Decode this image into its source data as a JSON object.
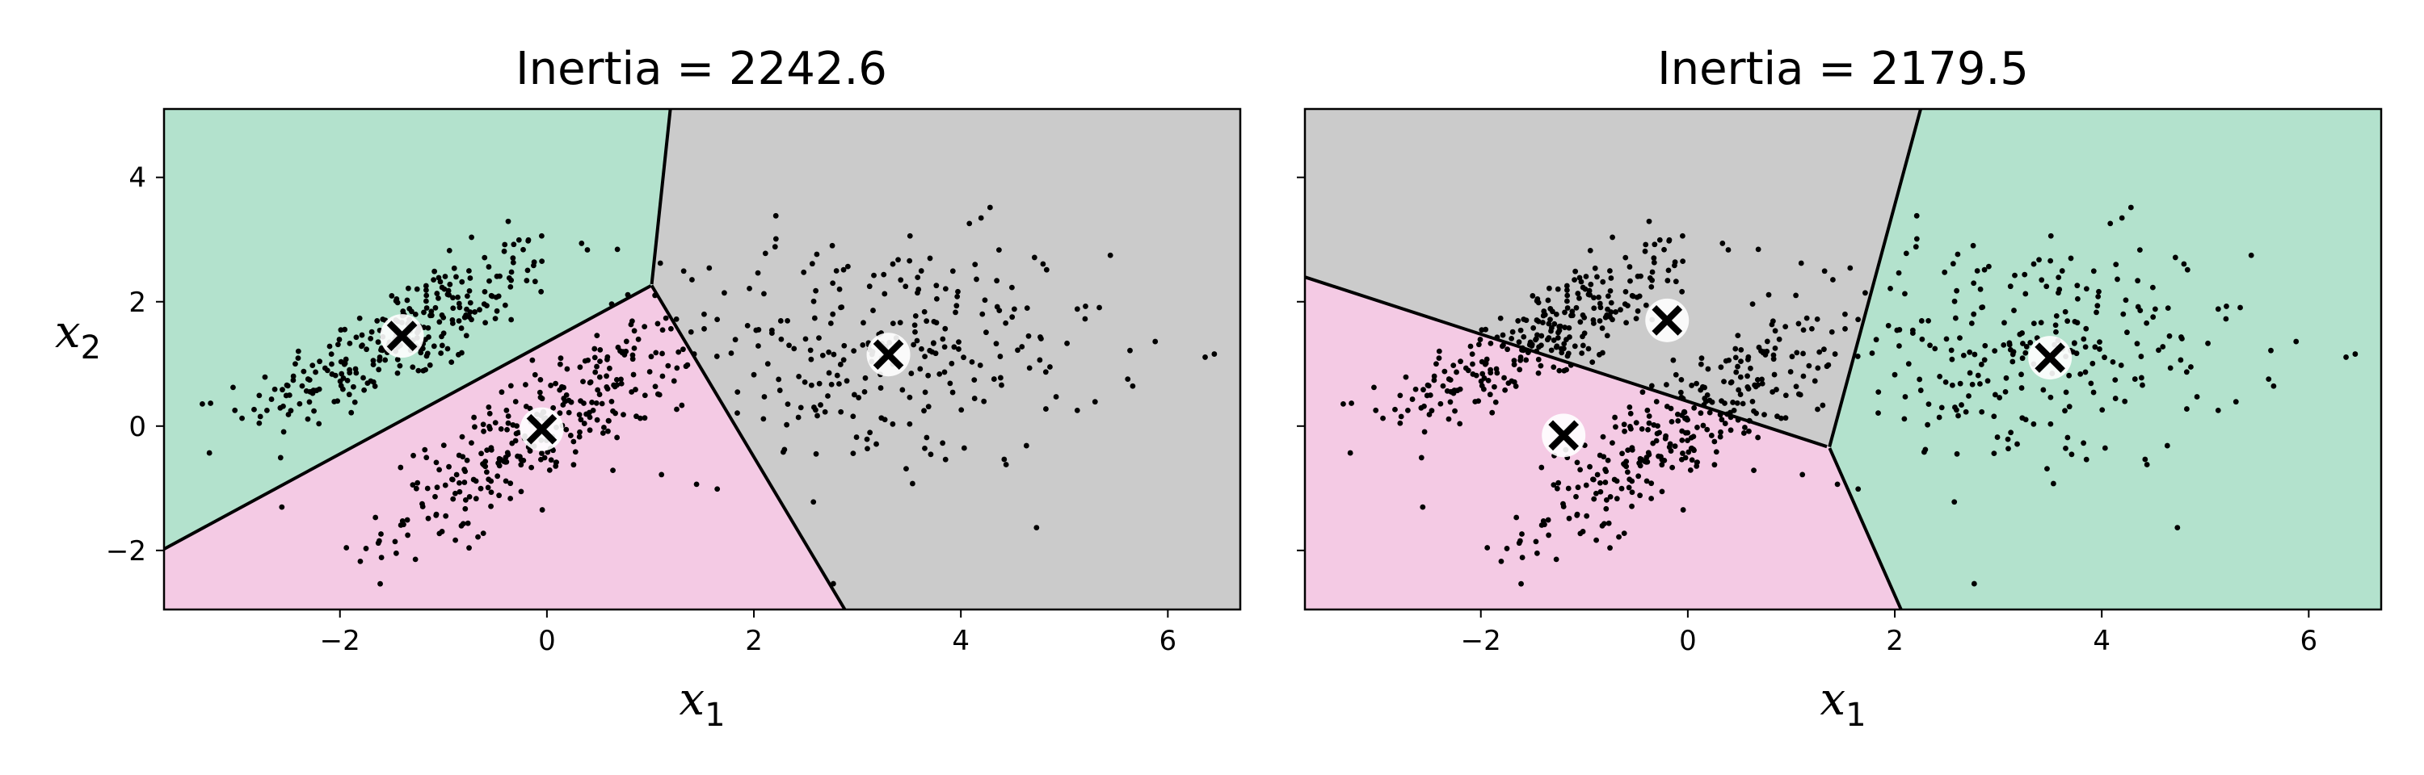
{
  "chart_data": [
    {
      "type": "scatter",
      "title": "Inertia = 2242.6",
      "xlabel": "x",
      "xlabel_sub": "1",
      "ylabel": "x",
      "ylabel_sub": "2",
      "xlim": [
        -3.7,
        6.7
      ],
      "ylim": [
        -2.95,
        5.1
      ],
      "xticks": [
        -2,
        0,
        2,
        4,
        6
      ],
      "yticks": [
        -2,
        0,
        2,
        4
      ],
      "xtick_labels": [
        "−2",
        "0",
        "2",
        "4",
        "6"
      ],
      "ytick_labels": [
        "−2",
        "0",
        "2",
        "4"
      ],
      "show_ytick_labels": true,
      "grid": false,
      "centroids": [
        {
          "x": -1.4,
          "y": 1.45,
          "color": "#b3e2cd"
        },
        {
          "x": -0.05,
          "y": -0.05,
          "color": "#f4cae4"
        },
        {
          "x": 3.3,
          "y": 1.15,
          "color": "#cbcbcb"
        }
      ]
    },
    {
      "type": "scatter",
      "title": "Inertia = 2179.5",
      "xlabel": "x",
      "xlabel_sub": "1",
      "xlim": [
        -3.7,
        6.7
      ],
      "ylim": [
        -2.95,
        5.1
      ],
      "xticks": [
        -2,
        0,
        2,
        4,
        6
      ],
      "yticks": [
        -2,
        0,
        2,
        4
      ],
      "xtick_labels": [
        "−2",
        "0",
        "2",
        "4",
        "6"
      ],
      "ytick_labels": [
        "−2",
        "0",
        "2",
        "4"
      ],
      "show_ytick_labels": false,
      "grid": false,
      "centroids": [
        {
          "x": -0.2,
          "y": 1.7,
          "color": "#cbcbcb"
        },
        {
          "x": -1.2,
          "y": -0.15,
          "color": "#f4cae4"
        },
        {
          "x": 3.5,
          "y": 1.1,
          "color": "#b3e2cd"
        }
      ]
    }
  ],
  "data_points": {
    "blobs": [
      {
        "n": 280,
        "cx": -1.4,
        "cy": 1.45,
        "sx": 0.75,
        "sy": 0.75,
        "corr": 0.82
      },
      {
        "n": 300,
        "cx": -0.05,
        "cy": -0.05,
        "sx": 0.75,
        "sy": 0.9,
        "corr": 0.85
      },
      {
        "n": 260,
        "cx": 3.3,
        "cy": 1.15,
        "sx": 1.05,
        "sy": 0.95,
        "corr": 0.05
      }
    ]
  }
}
